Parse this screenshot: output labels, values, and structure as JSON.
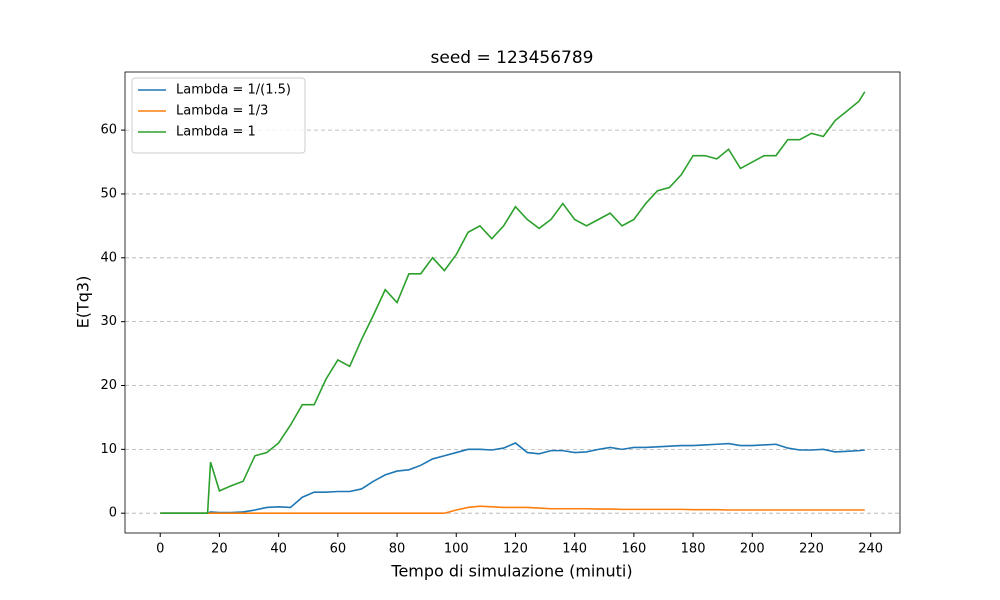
{
  "chart_data": {
    "type": "line",
    "title": "seed = 123456789",
    "xlabel": "Tempo di simulazione (minuti)",
    "ylabel": "E(Tq3)",
    "x": [
      0,
      4,
      8,
      12,
      16,
      17,
      20,
      24,
      28,
      32,
      36,
      40,
      44,
      48,
      52,
      56,
      60,
      64,
      68,
      72,
      76,
      80,
      84,
      88,
      92,
      96,
      100,
      104,
      108,
      112,
      116,
      120,
      124,
      128,
      132,
      136,
      140,
      144,
      148,
      152,
      156,
      160,
      164,
      168,
      172,
      176,
      180,
      184,
      188,
      192,
      196,
      200,
      204,
      208,
      212,
      216,
      220,
      224,
      228,
      232,
      236,
      238
    ],
    "series": [
      {
        "name": "Lambda = 1/(1.5)",
        "color": "#1f77b4",
        "values": [
          0,
          0,
          0,
          0,
          0,
          0.2,
          0.1,
          0.1,
          0.2,
          0.5,
          0.9,
          1,
          0.9,
          2.5,
          3.3,
          3.3,
          3.4,
          3.4,
          3.8,
          5,
          6,
          6.6,
          6.8,
          7.5,
          8.5,
          9,
          9.5,
          10,
          10,
          9.9,
          10.2,
          11,
          9.5,
          9.3,
          9.8,
          9.8,
          9.5,
          9.6,
          10,
          10.3,
          10,
          10.3,
          10.3,
          10.4,
          10.5,
          10.6,
          10.6,
          10.7,
          10.8,
          10.9,
          10.6,
          10.6,
          10.7,
          10.8,
          10.2,
          9.9,
          9.9,
          10,
          9.6,
          9.7,
          9.8,
          9.9
        ]
      },
      {
        "name": "Lambda = 1/3",
        "color": "#ff7f0e",
        "values": [
          0,
          0,
          0,
          0,
          0,
          0,
          0,
          0,
          0,
          0,
          0,
          0,
          0,
          0,
          0,
          0,
          0,
          0,
          0,
          0,
          0,
          0,
          0,
          0,
          0,
          0,
          0.5,
          0.9,
          1.1,
          1,
          0.9,
          0.9,
          0.9,
          0.8,
          0.7,
          0.7,
          0.7,
          0.7,
          0.65,
          0.65,
          0.6,
          0.6,
          0.6,
          0.6,
          0.6,
          0.6,
          0.55,
          0.55,
          0.55,
          0.5,
          0.5,
          0.5,
          0.5,
          0.5,
          0.5,
          0.5,
          0.5,
          0.5,
          0.5,
          0.5,
          0.5,
          0.5
        ]
      },
      {
        "name": "Lambda = 1",
        "color": "#2ca02c",
        "values": [
          0,
          0,
          0,
          0,
          0,
          8,
          3.5,
          4.3,
          5,
          9,
          9.5,
          11,
          13.8,
          17,
          17,
          21,
          24,
          23,
          27.2,
          31,
          35,
          33,
          37.5,
          37.5,
          40,
          38,
          40.5,
          44,
          45,
          43,
          45,
          48,
          46,
          44.6,
          46,
          48.5,
          46,
          45,
          46,
          47,
          45,
          46,
          48.5,
          50.5,
          51,
          53,
          56,
          56,
          55.5,
          57,
          54,
          55,
          56,
          56,
          58.5,
          58.5,
          59.5,
          59,
          61.5,
          63,
          64.5,
          66
        ]
      }
    ],
    "xlim": [
      -11.9,
      249.9
    ],
    "ylim": [
      -3.1,
      69.1
    ],
    "xticks": [
      0,
      20,
      40,
      60,
      80,
      100,
      120,
      140,
      160,
      180,
      200,
      220,
      240
    ],
    "yticks": [
      0,
      10,
      20,
      30,
      40,
      50,
      60
    ],
    "grid": true,
    "legend": "upper left"
  }
}
